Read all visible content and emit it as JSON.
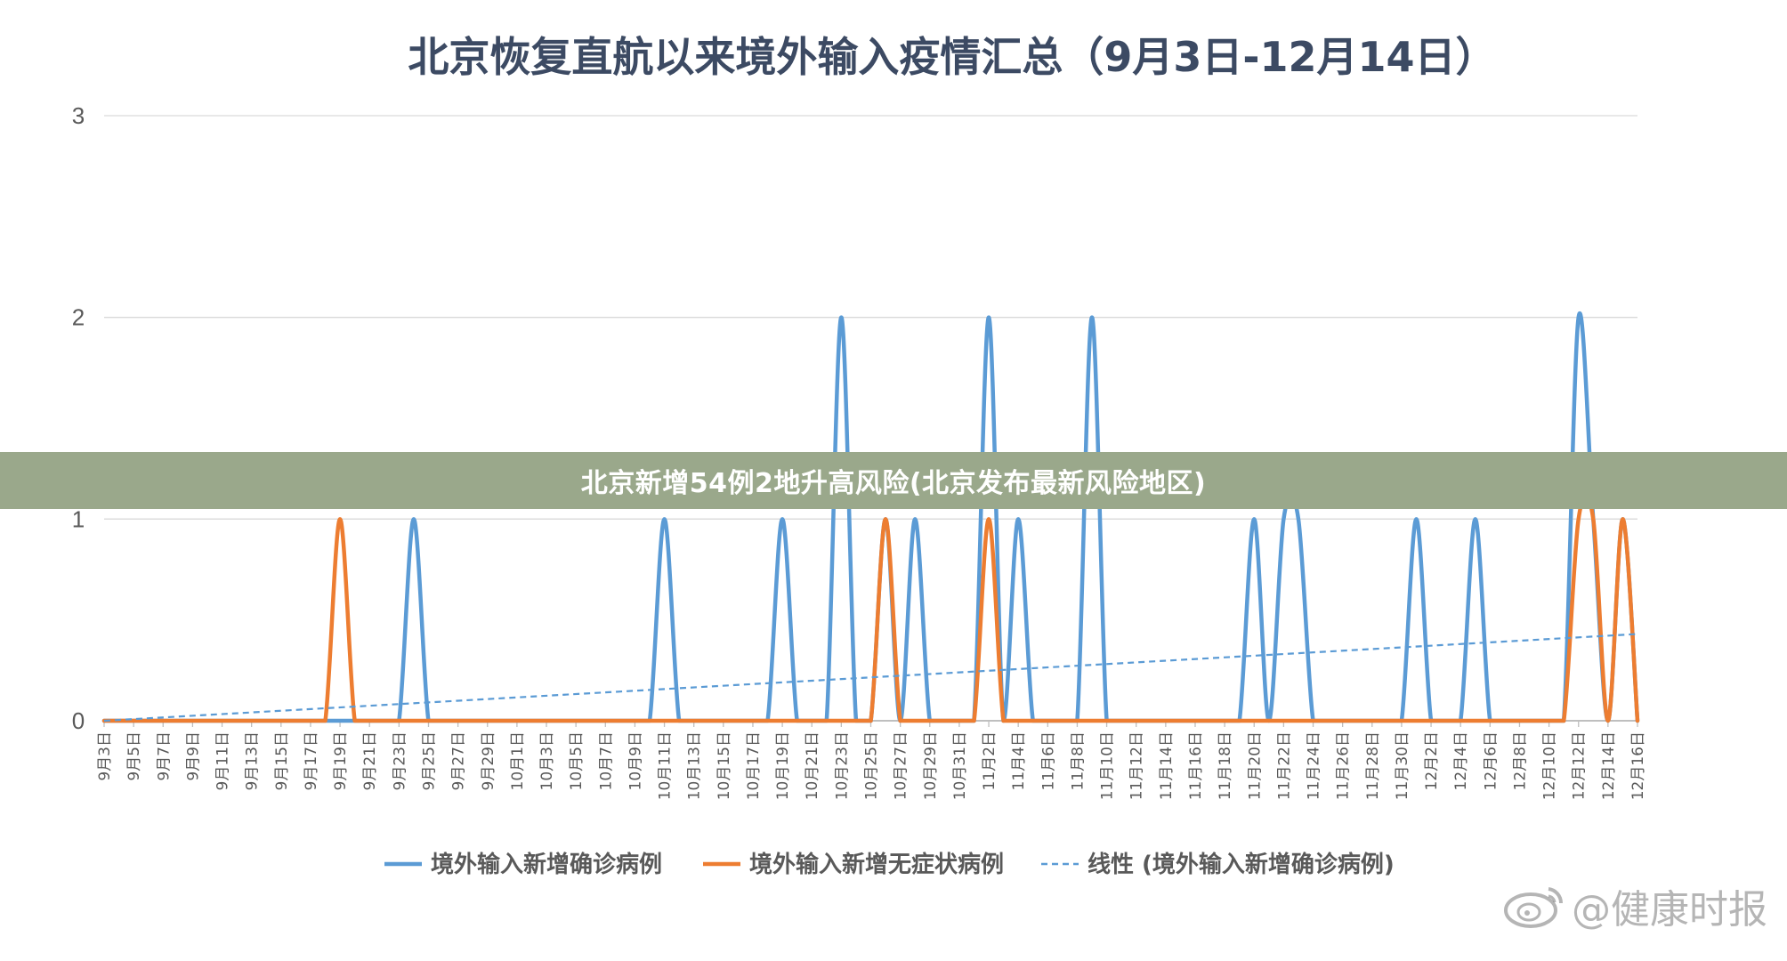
{
  "chart_data": {
    "type": "line",
    "title": "北京恢复直航以来境外输入疫情汇总（9月3日-12月14日）",
    "y_ticks": [
      "0",
      "1",
      "2",
      "3"
    ],
    "ylim": [
      0,
      3
    ],
    "grid": true,
    "legend_position": "bottom",
    "categories": [
      "9月3日",
      "9月5日",
      "9月7日",
      "9月9日",
      "9月11日",
      "9月13日",
      "9月15日",
      "9月17日",
      "9月19日",
      "9月21日",
      "9月23日",
      "9月25日",
      "9月27日",
      "9月29日",
      "10月1日",
      "10月3日",
      "10月5日",
      "10月7日",
      "10月9日",
      "10月11日",
      "10月13日",
      "10月15日",
      "10月17日",
      "10月19日",
      "10月21日",
      "10月23日",
      "10月25日",
      "10月27日",
      "10月29日",
      "10月31日",
      "11月2日",
      "11月4日",
      "11月6日",
      "11月8日",
      "11月10日",
      "11月12日",
      "11月14日",
      "11月16日",
      "11月18日",
      "11月20日",
      "11月22日",
      "11月24日",
      "11月26日",
      "11月28日",
      "11月30日",
      "12月2日",
      "12月4日",
      "12月6日",
      "12月8日",
      "12月10日",
      "12月12日",
      "12月14日",
      "12月16日"
    ],
    "series": [
      {
        "name": "境外输入新增确诊病例",
        "color": "#5b9bd5",
        "style": "solid",
        "points": [
          [
            "9月23日",
            0
          ],
          [
            "9月24日",
            1
          ],
          [
            "9月25日",
            0
          ],
          [
            "10月10日",
            0
          ],
          [
            "10月11日",
            1
          ],
          [
            "10月12日",
            0
          ],
          [
            "10月18日",
            0
          ],
          [
            "10月19日",
            1
          ],
          [
            "10月20日",
            0
          ],
          [
            "10月22日",
            0
          ],
          [
            "10月23日",
            2
          ],
          [
            "10月24日",
            0
          ],
          [
            "10月25日",
            0
          ],
          [
            "10月26日",
            1
          ],
          [
            "10月27日",
            0
          ],
          [
            "10月28日",
            1
          ],
          [
            "10月29日",
            0
          ],
          [
            "11月1日",
            0
          ],
          [
            "11月2日",
            2
          ],
          [
            "11月3日",
            0
          ],
          [
            "11月4日",
            1
          ],
          [
            "11月5日",
            0
          ],
          [
            "11月8日",
            0
          ],
          [
            "11月9日",
            2
          ],
          [
            "11月10日",
            0
          ],
          [
            "11月19日",
            0
          ],
          [
            "11月20日",
            1
          ],
          [
            "11月21日",
            0
          ],
          [
            "11月22日",
            1
          ],
          [
            "11月23日",
            1
          ],
          [
            "11月24日",
            0
          ],
          [
            "11月30日",
            0
          ],
          [
            "12月1日",
            1
          ],
          [
            "12月2日",
            0
          ],
          [
            "12月4日",
            0
          ],
          [
            "12月5日",
            1
          ],
          [
            "12月6日",
            0
          ],
          [
            "12月11日",
            0
          ],
          [
            "12月12日",
            2
          ],
          [
            "12月13日",
            1
          ],
          [
            "12月15日",
            1
          ],
          [
            "12月16日",
            0
          ]
        ]
      },
      {
        "name": "境外输入新增无症状病例",
        "color": "#ed7d31",
        "style": "solid",
        "points": [
          [
            "9月18日",
            0
          ],
          [
            "9月19日",
            1
          ],
          [
            "9月20日",
            0
          ],
          [
            "10月25日",
            0
          ],
          [
            "10月26日",
            1
          ],
          [
            "10月27日",
            0
          ],
          [
            "11月1日",
            0
          ],
          [
            "11月2日",
            1
          ],
          [
            "11月3日",
            0
          ],
          [
            "12月11日",
            0
          ],
          [
            "12月12日",
            1
          ],
          [
            "12月13日",
            1
          ],
          [
            "12月14日",
            0
          ],
          [
            "12月15日",
            1
          ],
          [
            "12月16日",
            0
          ]
        ]
      },
      {
        "name": "线性 (境外输入新增确诊病例)",
        "color": "#5b9bd5",
        "style": "dashed",
        "trend": {
          "start": [
            "9月3日",
            -0.02
          ],
          "end": [
            "12月16日",
            0.43
          ]
        }
      }
    ]
  },
  "banner": {
    "text": "北京新增54例2地升高风险(北京发布最新风险地区)"
  },
  "watermark": {
    "text": "@健康时报",
    "icon": "weibo-icon"
  }
}
